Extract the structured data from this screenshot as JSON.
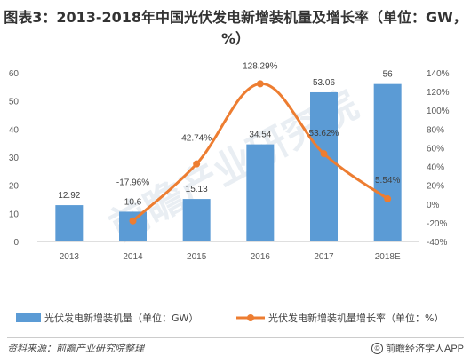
{
  "title": "图表3：2013-2018年中国光伏发电新增装机量及增长率（单位：GW，%）",
  "watermark": "前瞻产业研究院",
  "source": {
    "label": "资料来源：前瞻产业研究院整理",
    "publisher": "前瞻经济学人APP",
    "copyright_glyph": "©"
  },
  "colors": {
    "bar": "#5b9bd5",
    "line": "#ed7d31",
    "watermark": "#e9eef3"
  },
  "chart_data": {
    "type": "bar",
    "title": "图表3：2013-2018年中国光伏发电新增装机量及增长率（单位：GW，%）",
    "categories": [
      "2013",
      "2014",
      "2015",
      "2016",
      "2017",
      "2018E"
    ],
    "series": [
      {
        "name": "光伏发电新增装机量（单位：GW）",
        "type": "bar",
        "axis": "left",
        "values": [
          12.92,
          10.6,
          15.13,
          34.54,
          53.06,
          56
        ],
        "labels": [
          "12.92",
          "10.6",
          "15.13",
          "34.54",
          "53.06",
          "56"
        ]
      },
      {
        "name": "光伏发电新增装机量增长率（单位：%）",
        "type": "line",
        "axis": "right",
        "values": [
          null,
          -17.96,
          42.74,
          128.29,
          53.62,
          5.54
        ],
        "labels": [
          "",
          "-17.96%",
          "42.74%",
          "128.29%",
          "53.62%",
          "5.54%"
        ]
      }
    ],
    "y_left": {
      "range": [
        0,
        60
      ],
      "ticks": [
        0,
        10,
        20,
        30,
        40,
        50,
        60
      ],
      "tick_labels": [
        "0",
        "10",
        "20",
        "30",
        "40",
        "50",
        "60"
      ]
    },
    "y_right": {
      "range": [
        -40,
        140
      ],
      "ticks": [
        -40,
        -20,
        0,
        20,
        40,
        60,
        80,
        100,
        120,
        140
      ],
      "tick_labels": [
        "-40%",
        "-20%",
        "0%",
        "20%",
        "40%",
        "60%",
        "80%",
        "100%",
        "120%",
        "140%"
      ]
    },
    "grid": false,
    "legend_position": "bottom"
  }
}
